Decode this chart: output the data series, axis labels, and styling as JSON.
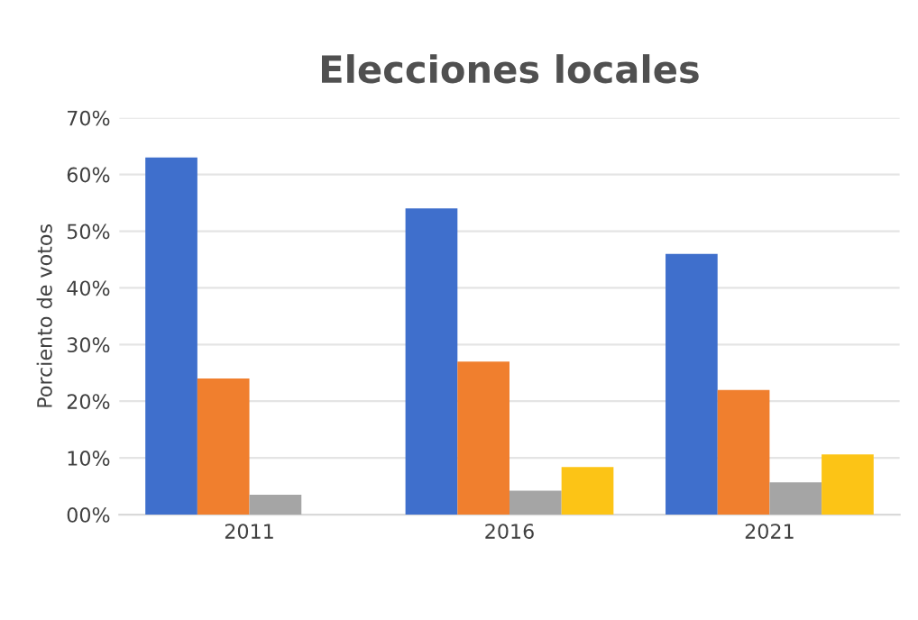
{
  "chart_data": {
    "type": "bar",
    "title": "Elecciones locales",
    "ylabel": "Porciento de votos",
    "categories": [
      "2011",
      "2016",
      "2021"
    ],
    "series": [
      {
        "color": "#3f6fcc",
        "values": [
          63,
          54,
          46
        ]
      },
      {
        "color": "#f07f2e",
        "values": [
          24,
          27,
          22
        ]
      },
      {
        "color": "#a5a5a5",
        "values": [
          3.5,
          4.2,
          5.7
        ]
      },
      {
        "color": "#fcc416",
        "values": [
          null,
          8.4,
          10.6
        ]
      }
    ],
    "ylim": [
      0,
      70
    ],
    "yticks": [
      {
        "value": 0,
        "label": "00%"
      },
      {
        "value": 10,
        "label": "10%"
      },
      {
        "value": 20,
        "label": "20%"
      },
      {
        "value": 30,
        "label": "30%"
      },
      {
        "value": 40,
        "label": "40%"
      },
      {
        "value": 50,
        "label": "50%"
      },
      {
        "value": 60,
        "label": "60%"
      },
      {
        "value": 70,
        "label": "70%"
      }
    ],
    "grid": "y",
    "legend": false
  }
}
